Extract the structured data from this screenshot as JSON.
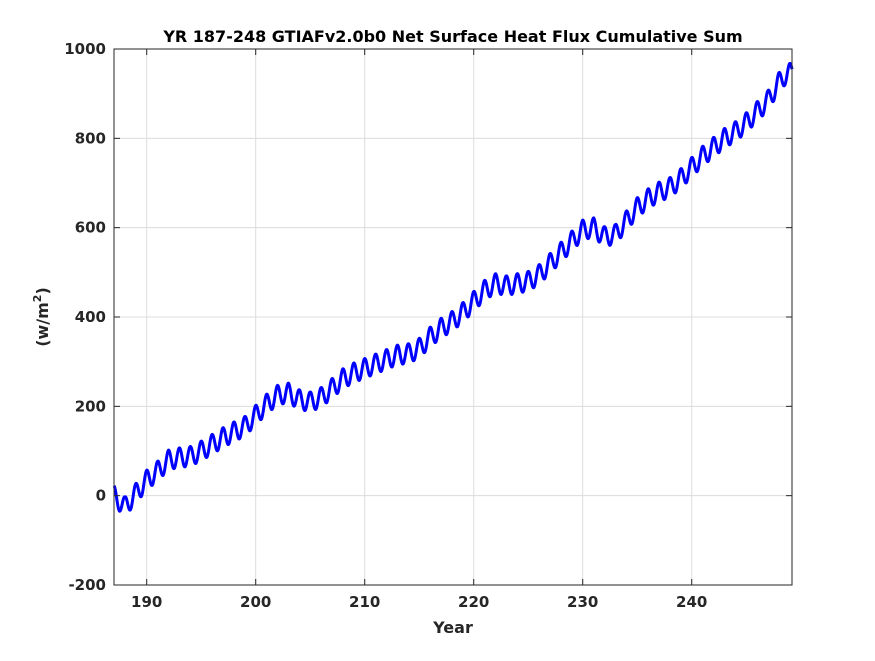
{
  "chart_data": {
    "type": "line",
    "title": "YR 187-248 GTIAFv2.0b0 Net Surface Heat Flux  Cumulative Sum",
    "xlabel": "Year",
    "ylabel_base": "(w/m",
    "ylabel_exponent": "2",
    "ylabel_close": ")",
    "xlim": [
      187,
      249.2
    ],
    "ylim": [
      -200,
      1000
    ],
    "xticks": [
      190,
      200,
      210,
      220,
      230,
      240
    ],
    "xtick_labels": [
      "190",
      "200",
      "210",
      "220",
      "230",
      "240"
    ],
    "yticks": [
      -200,
      0,
      200,
      400,
      600,
      800,
      1000
    ],
    "ytick_labels": [
      "-200",
      "0",
      "200",
      "400",
      "600",
      "800",
      "1000"
    ],
    "grid": true,
    "series": [
      {
        "color": "#0000ff",
        "seasonal_amplitude": 22,
        "annual_trend": [
          [
            187.0,
            0
          ],
          [
            188.0,
            -25
          ],
          [
            189.0,
            5
          ],
          [
            190.0,
            35
          ],
          [
            191.0,
            55
          ],
          [
            192.0,
            80
          ],
          [
            193.0,
            85
          ],
          [
            194.0,
            88
          ],
          [
            195.0,
            100
          ],
          [
            196.0,
            115
          ],
          [
            197.0,
            130
          ],
          [
            198.0,
            143
          ],
          [
            199.0,
            155
          ],
          [
            200.0,
            180
          ],
          [
            201.0,
            205
          ],
          [
            202.0,
            225
          ],
          [
            203.0,
            230
          ],
          [
            204.0,
            215
          ],
          [
            205.0,
            210
          ],
          [
            206.0,
            220
          ],
          [
            207.0,
            240
          ],
          [
            208.0,
            262
          ],
          [
            209.0,
            275
          ],
          [
            210.0,
            285
          ],
          [
            211.0,
            295
          ],
          [
            212.0,
            305
          ],
          [
            213.0,
            315
          ],
          [
            214.0,
            318
          ],
          [
            215.0,
            330
          ],
          [
            216.0,
            355
          ],
          [
            217.0,
            375
          ],
          [
            218.0,
            390
          ],
          [
            219.0,
            410
          ],
          [
            220.0,
            435
          ],
          [
            221.0,
            460
          ],
          [
            222.0,
            475
          ],
          [
            223.0,
            470
          ],
          [
            224.0,
            475
          ],
          [
            225.0,
            480
          ],
          [
            226.0,
            495
          ],
          [
            227.0,
            520
          ],
          [
            228.0,
            545
          ],
          [
            229.0,
            570
          ],
          [
            230.0,
            595
          ],
          [
            231.0,
            600
          ],
          [
            232.0,
            580
          ],
          [
            233.0,
            585
          ],
          [
            234.0,
            615
          ],
          [
            235.0,
            645
          ],
          [
            236.0,
            665
          ],
          [
            237.0,
            680
          ],
          [
            238.0,
            690
          ],
          [
            239.0,
            710
          ],
          [
            240.0,
            735
          ],
          [
            241.0,
            760
          ],
          [
            242.0,
            780
          ],
          [
            243.0,
            800
          ],
          [
            244.0,
            815
          ],
          [
            245.0,
            835
          ],
          [
            246.0,
            860
          ],
          [
            247.0,
            885
          ],
          [
            248.0,
            925
          ],
          [
            248.5,
            940
          ],
          [
            249.2,
            948
          ]
        ]
      }
    ]
  }
}
